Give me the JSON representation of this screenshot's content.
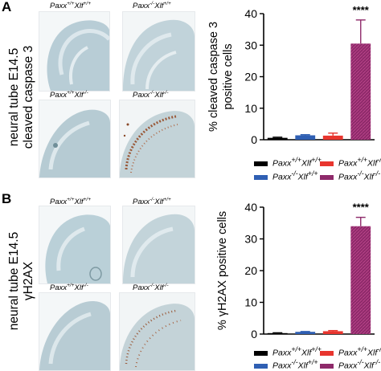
{
  "panels": [
    {
      "letter": "",
      "side_label_line1": "neural tube E14.5",
      "side_label_line2": "cleaved caspase 3",
      "genotypes": [
        "Paxx+/+Xlf+/+",
        "Paxx-/-Xlf+/+",
        "Paxx+/+Xlf-/-",
        "Paxx-/-Xlf-/-"
      ]
    },
    {
      "letter": "B",
      "side_label_line1": "neural tube E14.5",
      "side_label_line2": "γH2AX",
      "genotypes": [
        "Paxx+/+Xlf+/+",
        "Paxx-/-Xlf+/+",
        "Paxx+/+Xlf-/-",
        "Paxx-/-Xlf-/-"
      ]
    }
  ],
  "legend": [
    {
      "gene1": "Paxx",
      "sup1": "+/+",
      "gene2": "Xlf",
      "sup2": "+/+",
      "color": "#000000"
    },
    {
      "gene1": "Paxx",
      "sup1": "+/+",
      "gene2": "Xlf",
      "sup2": "-/-",
      "color": "#e8352e"
    },
    {
      "gene1": "Paxx",
      "sup1": "-/-",
      "gene2": "Xlf",
      "sup2": "+/+",
      "color": "#2f5fb3"
    },
    {
      "gene1": "Paxx",
      "sup1": "-/-",
      "gene2": "Xlf",
      "sup2": "-/-",
      "color": "#8e2a6a"
    }
  ],
  "chart_data": [
    {
      "type": "bar",
      "ylabel_line1": "% cleaved caspase 3",
      "ylabel_line2": "positive cells",
      "categories": [
        "Paxx+/+Xlf+/+",
        "Paxx-/-Xlf+/+",
        "Paxx+/+Xlf-/-",
        "Paxx-/-Xlf-/-"
      ],
      "values": [
        0.6,
        1.4,
        1.3,
        30.5
      ],
      "errors": [
        0.2,
        0.2,
        0.8,
        7.5
      ],
      "colors": [
        "#000000",
        "#2f5fb3",
        "#e8352e",
        "#8e2a6a"
      ],
      "ylim": [
        0,
        40
      ],
      "yticks": [
        0,
        10,
        20,
        30,
        40
      ],
      "significance": "****"
    },
    {
      "type": "bar",
      "ylabel_line1": "% γH2AX positive cells",
      "ylabel_line2": "",
      "categories": [
        "Paxx+/+Xlf+/+",
        "Paxx-/-Xlf+/+",
        "Paxx+/+Xlf-/-",
        "Paxx-/-Xlf-/-"
      ],
      "values": [
        0.3,
        0.7,
        0.9,
        34.0
      ],
      "errors": [
        0.1,
        0.1,
        0.2,
        2.8
      ],
      "colors": [
        "#000000",
        "#2f5fb3",
        "#e8352e",
        "#8e2a6a"
      ],
      "ylim": [
        0,
        40
      ],
      "yticks": [
        0,
        10,
        20,
        30,
        40
      ],
      "significance": "****"
    }
  ]
}
